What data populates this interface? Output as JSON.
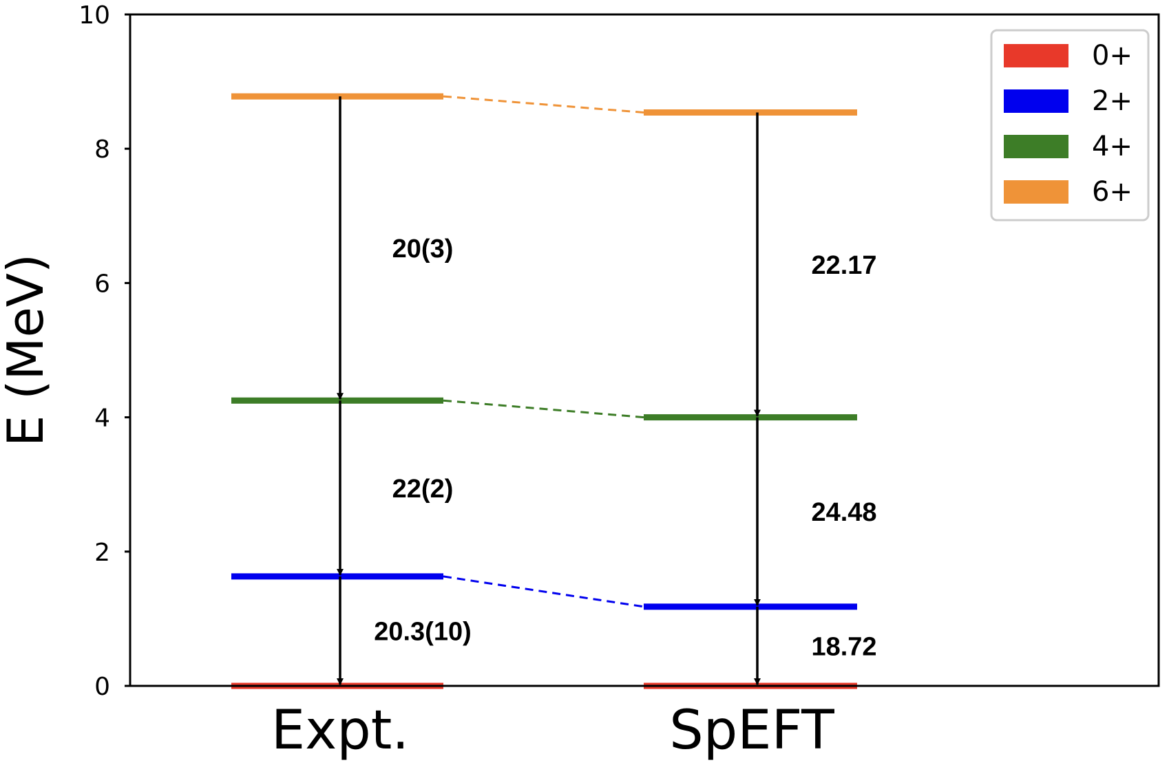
{
  "chart_data": {
    "type": "level-scheme",
    "ylabel": "E (MeV)",
    "ylim": [
      0,
      10
    ],
    "yticks": [
      "0",
      "2",
      "4",
      "6",
      "8",
      "10"
    ],
    "ytick_values": [
      0,
      2,
      4,
      6,
      8,
      10
    ],
    "columns": [
      {
        "label": "Expt.",
        "levels": [
          {
            "state": "0+",
            "energy": 0.0
          },
          {
            "state": "2+",
            "energy": 1.63
          },
          {
            "state": "4+",
            "energy": 4.25
          },
          {
            "state": "6+",
            "energy": 8.78
          }
        ],
        "transitions": [
          {
            "from": "6+",
            "to": "4+",
            "value": "20(3)"
          },
          {
            "from": "4+",
            "to": "2+",
            "value": "22(2)"
          },
          {
            "from": "2+",
            "to": "0+",
            "value": "20.3(10)"
          }
        ]
      },
      {
        "label": "SpEFT",
        "levels": [
          {
            "state": "0+",
            "energy": 0.0
          },
          {
            "state": "2+",
            "energy": 1.18
          },
          {
            "state": "4+",
            "energy": 4.0
          },
          {
            "state": "6+",
            "energy": 8.54
          }
        ],
        "transitions": [
          {
            "from": "6+",
            "to": "4+",
            "value": "22.17"
          },
          {
            "from": "4+",
            "to": "2+",
            "value": "24.48"
          },
          {
            "from": "2+",
            "to": "0+",
            "value": "18.72"
          }
        ]
      }
    ],
    "legend": {
      "placement": "top-right",
      "entries": [
        {
          "label": "0+",
          "color": "#e8392a"
        },
        {
          "label": "2+",
          "color": "#0000ee"
        },
        {
          "label": "4+",
          "color": "#3d7d27"
        },
        {
          "label": "6+",
          "color": "#ef9338"
        }
      ]
    },
    "grid": false
  }
}
